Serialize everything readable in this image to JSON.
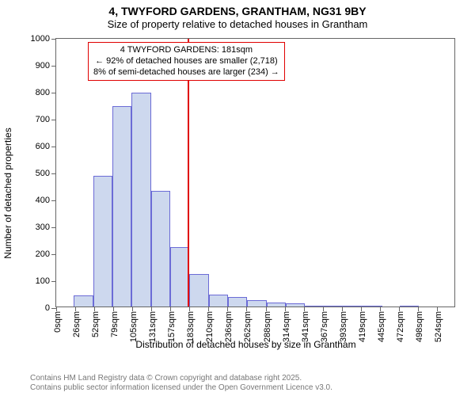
{
  "title": {
    "main": "4, TWYFORD GARDENS, GRANTHAM, NG31 9BY",
    "sub": "Size of property relative to detached houses in Grantham"
  },
  "ylabel": "Number of detached properties",
  "xlabel": "Distribution of detached houses by size in Grantham",
  "chart": {
    "type": "histogram",
    "ylim": [
      0,
      1000
    ],
    "ytick_step": 100,
    "bar_fill": "#cdd8ee",
    "bar_border": "#6b6bd6",
    "background_color": "#ffffff",
    "axis_color": "#666666",
    "bars": [
      {
        "x_label": "0sqm",
        "value": 0
      },
      {
        "x_label": "26sqm",
        "value": 40
      },
      {
        "x_label": "52sqm",
        "value": 485
      },
      {
        "x_label": "79sqm",
        "value": 745
      },
      {
        "x_label": "105sqm",
        "value": 795
      },
      {
        "x_label": "131sqm",
        "value": 430
      },
      {
        "x_label": "157sqm",
        "value": 220
      },
      {
        "x_label": "183sqm",
        "value": 120
      },
      {
        "x_label": "210sqm",
        "value": 45
      },
      {
        "x_label": "236sqm",
        "value": 35
      },
      {
        "x_label": "262sqm",
        "value": 25
      },
      {
        "x_label": "288sqm",
        "value": 15
      },
      {
        "x_label": "314sqm",
        "value": 12
      },
      {
        "x_label": "341sqm",
        "value": 1
      },
      {
        "x_label": "367sqm",
        "value": 2
      },
      {
        "x_label": "393sqm",
        "value": 1
      },
      {
        "x_label": "419sqm",
        "value": 1
      },
      {
        "x_label": "445sqm",
        "value": 0
      },
      {
        "x_label": "472sqm",
        "value": 1
      },
      {
        "x_label": "498sqm",
        "value": 0
      },
      {
        "x_label": "524sqm",
        "value": 0
      }
    ],
    "marker": {
      "position_value": 181,
      "x_range": [
        0,
        550
      ],
      "color": "#e00000"
    },
    "annotation": {
      "lines": [
        "4 TWYFORD GARDENS: 181sqm",
        "← 92% of detached houses are smaller (2,718)",
        "8% of semi-detached houses are larger (234) →"
      ],
      "border_color": "#e00000",
      "text_color": "#000000",
      "fontsize": 11
    }
  },
  "footer": {
    "line1": "Contains HM Land Registry data © Crown copyright and database right 2025.",
    "line2": "Contains public sector information licensed under the Open Government Licence v3.0."
  }
}
